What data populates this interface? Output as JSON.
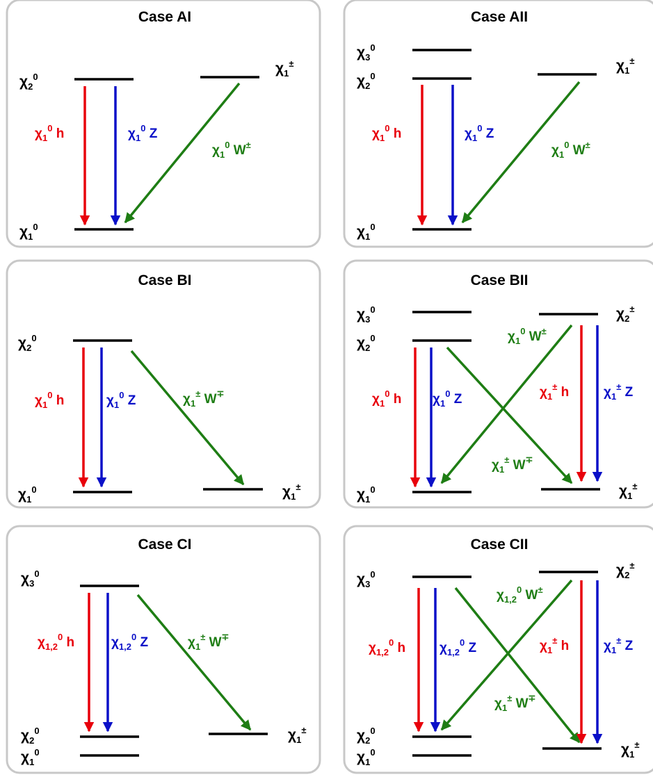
{
  "colors": {
    "panel_border": "#c8c8c8",
    "level": "#000000",
    "higgs": "#e8000b",
    "z": "#0a10c8",
    "w": "#1e7d14",
    "text": "#000000"
  },
  "icons": {
    "arrow_head": "filled-triangle-arrowhead"
  },
  "panels": [
    {
      "id": "AI",
      "title": "Case AI",
      "levels": [
        {
          "label_base": "χ",
          "label_sub": "2",
          "label_sup": "0"
        },
        {
          "label_base": "χ",
          "label_sub": "1",
          "label_sup": "0"
        },
        {
          "label_base": "χ",
          "label_sub": "1",
          "label_sup": "±"
        }
      ],
      "transitions": [
        {
          "label": "χ₁⁰ h",
          "boson": "h"
        },
        {
          "label": "χ₁⁰ Z",
          "boson": "Z"
        },
        {
          "label": "χ₁⁰ W±",
          "boson": "W"
        }
      ]
    },
    {
      "id": "AII",
      "title": "Case AII",
      "levels": [
        {
          "label_base": "χ",
          "label_sub": "3",
          "label_sup": "0"
        },
        {
          "label_base": "χ",
          "label_sub": "2",
          "label_sup": "0"
        },
        {
          "label_base": "χ",
          "label_sub": "1",
          "label_sup": "0"
        },
        {
          "label_base": "χ",
          "label_sub": "1",
          "label_sup": "±"
        }
      ],
      "transitions": [
        {
          "label": "χ₁⁰ h",
          "boson": "h"
        },
        {
          "label": "χ₁⁰ Z",
          "boson": "Z"
        },
        {
          "label": "χ₁⁰ W±",
          "boson": "W"
        }
      ]
    },
    {
      "id": "BI",
      "title": "Case BI",
      "levels": [
        {
          "label_base": "χ",
          "label_sub": "2",
          "label_sup": "0"
        },
        {
          "label_base": "χ",
          "label_sub": "1",
          "label_sup": "0"
        },
        {
          "label_base": "χ",
          "label_sub": "1",
          "label_sup": "±"
        }
      ],
      "transitions": [
        {
          "label": "χ₁⁰ h",
          "boson": "h"
        },
        {
          "label": "χ₁⁰ Z",
          "boson": "Z"
        },
        {
          "label": "χ₁± W∓",
          "boson": "W"
        }
      ]
    },
    {
      "id": "BII",
      "title": "Case BII",
      "levels": [
        {
          "label_base": "χ",
          "label_sub": "3",
          "label_sup": "0"
        },
        {
          "label_base": "χ",
          "label_sub": "2",
          "label_sup": "0"
        },
        {
          "label_base": "χ",
          "label_sub": "1",
          "label_sup": "0"
        },
        {
          "label_base": "χ",
          "label_sub": "2",
          "label_sup": "±"
        },
        {
          "label_base": "χ",
          "label_sub": "1",
          "label_sup": "±"
        }
      ],
      "transitions": [
        {
          "label": "χ₁⁰ h",
          "boson": "h"
        },
        {
          "label": "χ₁⁰ Z",
          "boson": "Z"
        },
        {
          "label": "χ₁⁰ W±",
          "boson": "W"
        },
        {
          "label": "χ₁± W∓",
          "boson": "W"
        },
        {
          "label": "χ₁± h",
          "boson": "h"
        },
        {
          "label": "χ₁± Z",
          "boson": "Z"
        }
      ]
    },
    {
      "id": "CI",
      "title": "Case CI",
      "levels": [
        {
          "label_base": "χ",
          "label_sub": "3",
          "label_sup": "0"
        },
        {
          "label_base": "χ",
          "label_sub": "2",
          "label_sup": "0"
        },
        {
          "label_base": "χ",
          "label_sub": "1",
          "label_sup": "0"
        },
        {
          "label_base": "χ",
          "label_sub": "1",
          "label_sup": "±"
        }
      ],
      "transitions": [
        {
          "label": "χ₁,₂⁰ h",
          "boson": "h"
        },
        {
          "label": "χ₁,₂⁰ Z",
          "boson": "Z"
        },
        {
          "label": "χ₁± W∓",
          "boson": "W"
        }
      ]
    },
    {
      "id": "CII",
      "title": "Case CII",
      "levels": [
        {
          "label_base": "χ",
          "label_sub": "3",
          "label_sup": "0"
        },
        {
          "label_base": "χ",
          "label_sub": "2",
          "label_sup": "0"
        },
        {
          "label_base": "χ",
          "label_sub": "1",
          "label_sup": "0"
        },
        {
          "label_base": "χ",
          "label_sub": "2",
          "label_sup": "±"
        },
        {
          "label_base": "χ",
          "label_sub": "1",
          "label_sup": "±"
        }
      ],
      "transitions": [
        {
          "label": "χ₁,₂⁰ h",
          "boson": "h"
        },
        {
          "label": "χ₁,₂⁰ Z",
          "boson": "Z"
        },
        {
          "label": "χ₁,₂⁰ W±",
          "boson": "W"
        },
        {
          "label": "χ₁± W∓",
          "boson": "W"
        },
        {
          "label": "χ₁± h",
          "boson": "h"
        },
        {
          "label": "χ₁± Z",
          "boson": "Z"
        }
      ]
    }
  ]
}
